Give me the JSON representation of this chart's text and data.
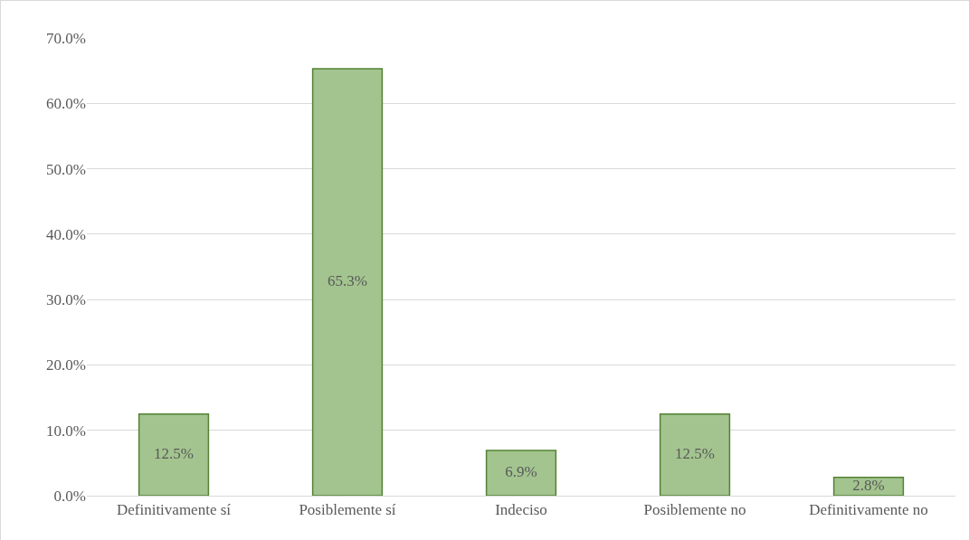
{
  "chart_data": {
    "type": "bar",
    "categories": [
      "Definitivamente sí",
      "Posiblemente sí",
      "Indeciso",
      "Posiblemente no",
      "Definitivamente no"
    ],
    "values": [
      12.5,
      65.3,
      6.9,
      12.5,
      2.8
    ],
    "value_labels": [
      "12.5%",
      "65.3%",
      "6.9%",
      "12.5%",
      "2.8%"
    ],
    "color": "#a3c48f",
    "ylim": [
      0,
      70
    ],
    "yticks": [
      {
        "value": 0,
        "label": "0.0%"
      },
      {
        "value": 10,
        "label": "10.0%"
      },
      {
        "value": 20,
        "label": "20.0%"
      },
      {
        "value": 30,
        "label": "30.0%"
      },
      {
        "value": 40,
        "label": "40.0%"
      },
      {
        "value": 50,
        "label": "50.0%"
      },
      {
        "value": 60,
        "label": "60.0%"
      },
      {
        "value": 70,
        "label": "70.0%"
      }
    ],
    "grid": "y"
  }
}
